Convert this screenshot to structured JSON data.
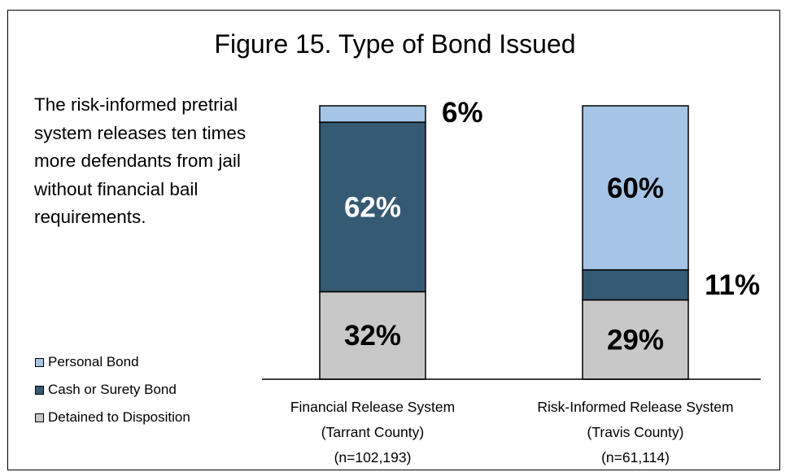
{
  "title": "Figure 15.  Type of Bond Issued",
  "description": "The risk-informed pretrial system releases ten times more defendants from jail without financial bail requirements.",
  "legend": [
    {
      "label": "Personal Bond",
      "color": "#a5c4e6"
    },
    {
      "label": "Cash or Surety Bond",
      "color": "#355a73"
    },
    {
      "label": "Detained to Disposition",
      "color": "#c8c8c8"
    }
  ],
  "chart_data": {
    "type": "bar",
    "stacked": true,
    "title": "Figure 15.  Type of Bond Issued",
    "categories": [
      {
        "line1": "Financial Release System",
        "line2": "(Tarrant County)",
        "line3": "(n=102,193)"
      },
      {
        "line1": "Risk-Informed Release System",
        "line2": "(Travis County)",
        "line3": "(n=61,114)"
      }
    ],
    "series": [
      {
        "name": "Detained to Disposition",
        "color": "#c8c8c8",
        "label_color": "#000000",
        "values": [
          32,
          29
        ],
        "labels": [
          "32%",
          "29%"
        ]
      },
      {
        "name": "Cash or Surety Bond",
        "color": "#355a73",
        "label_color": "#ffffff",
        "values": [
          62,
          11
        ],
        "labels": [
          "62%",
          "11%"
        ]
      },
      {
        "name": "Personal Bond",
        "color": "#a5c4e6",
        "label_color": "#000000",
        "values": [
          6,
          60
        ],
        "labels": [
          "6%",
          "60%"
        ]
      }
    ],
    "ylim": [
      0,
      100
    ],
    "legend_position": "bottom-left",
    "grid": false
  }
}
